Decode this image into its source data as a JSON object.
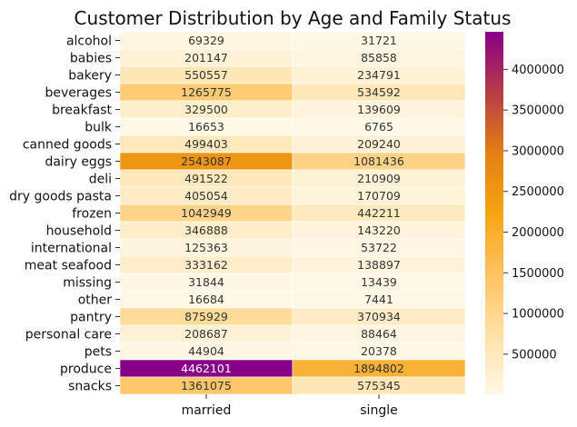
{
  "chart_data": {
    "type": "heatmap",
    "title": "Customer Distribution by Age and Family Status",
    "xlabel": "",
    "ylabel": "",
    "columns": [
      "married",
      "single"
    ],
    "rows": [
      "alcohol",
      "babies",
      "bakery",
      "beverages",
      "breakfast",
      "bulk",
      "canned goods",
      "dairy eggs",
      "deli",
      "dry goods pasta",
      "frozen",
      "household",
      "international",
      "meat seafood",
      "missing",
      "other",
      "pantry",
      "personal care",
      "pets",
      "produce",
      "snacks"
    ],
    "values": [
      [
        69329,
        31721
      ],
      [
        201147,
        85858
      ],
      [
        550557,
        234791
      ],
      [
        1265775,
        534592
      ],
      [
        329500,
        139609
      ],
      [
        16653,
        6765
      ],
      [
        499403,
        209240
      ],
      [
        2543087,
        1081436
      ],
      [
        491522,
        210909
      ],
      [
        405054,
        170709
      ],
      [
        1042949,
        442211
      ],
      [
        346888,
        143220
      ],
      [
        125363,
        53722
      ],
      [
        333162,
        138897
      ],
      [
        31844,
        13439
      ],
      [
        16684,
        7441
      ],
      [
        875929,
        370934
      ],
      [
        208687,
        88464
      ],
      [
        44904,
        20378
      ],
      [
        4462101,
        1894802
      ],
      [
        1361075,
        575345
      ]
    ],
    "colorbar": {
      "min": 6765,
      "max": 4462101,
      "ticks": [
        500000,
        1000000,
        1500000,
        2000000,
        2500000,
        3000000,
        3500000,
        4000000
      ],
      "colormap": [
        "#fff8e7",
        "#ffe0a5",
        "#ffc260",
        "#f6a412",
        "#e27f13",
        "#b73c47",
        "#880088"
      ]
    },
    "grid": false,
    "legend": "colorbar-right"
  }
}
